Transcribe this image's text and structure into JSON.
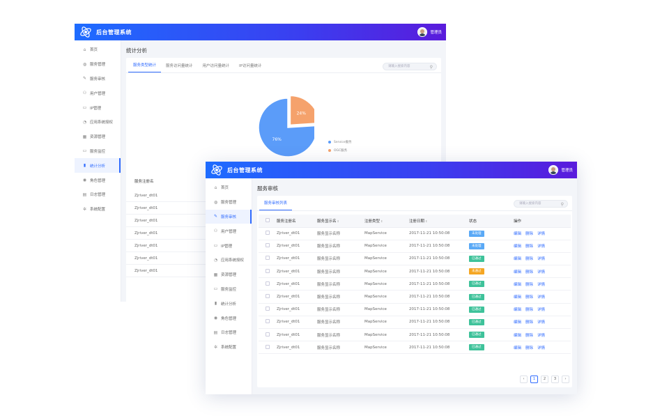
{
  "app": {
    "title": "后台管理系统",
    "user": "管理员"
  },
  "nav": [
    {
      "label": "首页",
      "icon": "home-icon"
    },
    {
      "label": "服务管理",
      "icon": "globe-icon"
    },
    {
      "label": "服务审核",
      "icon": "edit-icon"
    },
    {
      "label": "用户管理",
      "icon": "users-icon"
    },
    {
      "label": "IP管理",
      "icon": "ip-icon"
    },
    {
      "label": "应用系统授权",
      "icon": "clock-icon"
    },
    {
      "label": "资源管理",
      "icon": "grid-icon"
    },
    {
      "label": "服务监控",
      "icon": "monitor-icon"
    },
    {
      "label": "统计分析",
      "icon": "bar-chart-icon"
    },
    {
      "label": "角色管理",
      "icon": "role-icon"
    },
    {
      "label": "日志管理",
      "icon": "log-icon"
    },
    {
      "label": "系统配置",
      "icon": "gear-icon"
    }
  ],
  "back": {
    "page_title": "统计分析",
    "active_nav": 8,
    "tabs": [
      "服务类型统计",
      "服务访问量统计",
      "用户访问量统计",
      "IP访问量统计"
    ],
    "search_placeholder": "请输入搜索内容",
    "pie": {
      "slices": [
        {
          "label": "Service服务",
          "value": 76,
          "text": "76%",
          "color": "#5b9cf9"
        },
        {
          "label": "OGC服务",
          "value": 24,
          "text": "24%",
          "color": "#f5a26c"
        }
      ]
    },
    "table_header": "服务注册名",
    "rows": [
      "Zjriver_dt01",
      "Zjriver_dt01",
      "Zjriver_dt01",
      "Zjriver_dt01",
      "Zjriver_dt01",
      "Zjriver_dt01",
      "Zjriver_dt01"
    ]
  },
  "front": {
    "page_title": "服务审核",
    "active_nav": 2,
    "tab": "服务审核列表",
    "search_placeholder": "请输入搜索内容",
    "columns": [
      "服务注册名",
      "服务显示名",
      "注册类型",
      "注册日期",
      "状态",
      "操作"
    ],
    "sortable": [
      false,
      true,
      true,
      true,
      false,
      false
    ],
    "actions": [
      "编辑",
      "删除",
      "详情"
    ],
    "rows": [
      {
        "name": "Zjriver_dt01",
        "display": "服务显示名称",
        "type": "MapService",
        "date": "2017-11-21  10:50:08",
        "status": "未处理",
        "color": "#5aa9f6"
      },
      {
        "name": "Zjriver_dt01",
        "display": "服务显示名称",
        "type": "MapService",
        "date": "2017-11-21  10:50:08",
        "status": "未处理",
        "color": "#5aa9f6"
      },
      {
        "name": "Zjriver_dt01",
        "display": "服务显示名称",
        "type": "MapService",
        "date": "2017-11-21  10:50:08",
        "status": "已通过",
        "color": "#3ec29a"
      },
      {
        "name": "Zjriver_dt01",
        "display": "服务显示名称",
        "type": "MapService",
        "date": "2017-11-21  10:50:08",
        "status": "未通过",
        "color": "#f5a623"
      },
      {
        "name": "Zjriver_dt01",
        "display": "服务显示名称",
        "type": "MapService",
        "date": "2017-11-21  10:50:08",
        "status": "已通过",
        "color": "#3ec29a"
      },
      {
        "name": "Zjriver_dt01",
        "display": "服务显示名称",
        "type": "MapService",
        "date": "2017-11-21  10:50:08",
        "status": "已通过",
        "color": "#3ec29a"
      },
      {
        "name": "Zjriver_dt01",
        "display": "服务显示名称",
        "type": "MapService",
        "date": "2017-11-21  10:50:08",
        "status": "已通过",
        "color": "#3ec29a"
      },
      {
        "name": "Zjriver_dt01",
        "display": "服务显示名称",
        "type": "MapService",
        "date": "2017-11-21  10:50:08",
        "status": "已通过",
        "color": "#3ec29a"
      },
      {
        "name": "Zjriver_dt01",
        "display": "服务显示名称",
        "type": "MapService",
        "date": "2017-11-21  10:50:08",
        "status": "已通过",
        "color": "#3ec29a"
      },
      {
        "name": "Zjriver_dt01",
        "display": "服务显示名称",
        "type": "MapService",
        "date": "2017-11-21  10:50:08",
        "status": "已通过",
        "color": "#3ec29a"
      }
    ],
    "pager": {
      "prev": "‹",
      "pages": [
        "1",
        "2",
        "3"
      ],
      "current": "1",
      "next": "›"
    }
  },
  "icons": {
    "home-icon": "⌂",
    "globe-icon": "◍",
    "edit-icon": "✎",
    "users-icon": "⚇",
    "ip-icon": "▭",
    "clock-icon": "◔",
    "grid-icon": "▦",
    "monitor-icon": "▭",
    "bar-chart-icon": "▮",
    "role-icon": "◉",
    "log-icon": "▤",
    "gear-icon": "✲"
  }
}
